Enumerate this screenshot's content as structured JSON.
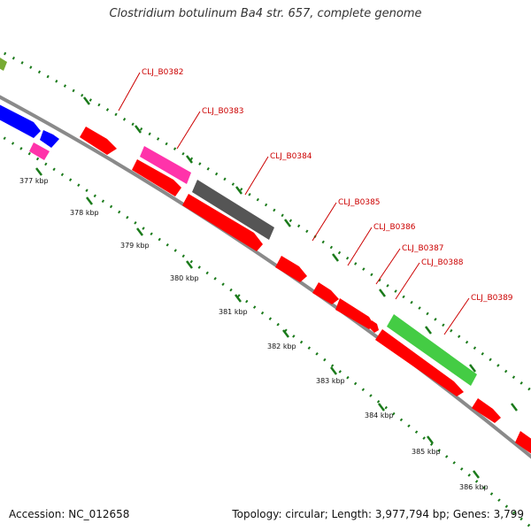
{
  "map": {
    "title": "Clostridium botulinum Ba4 str. 657, complete genome",
    "accession": "Accession: NC_012658",
    "topology": "Topology: circular; Length: 3,977,794 bp; Genes: 3,799"
  },
  "colors": {
    "backbone": "#8a8a8a",
    "tick": "#1a7a1a",
    "label": "#cc0000",
    "cds": "#ff0000",
    "trna": "#ff33aa",
    "pseudo": "#555555",
    "rrna": "#44cc44",
    "other_blue": "#0000ff",
    "other_olive": "#77aa33"
  },
  "ticks": [
    "377 kbp",
    "378 kbp",
    "379 kbp",
    "380 kbp",
    "381 kbp",
    "382 kbp",
    "383 kbp",
    "384 kbp",
    "385 kbp",
    "386 kbp"
  ],
  "gene_labels": [
    "CLJ_B0382",
    "CLJ_B0383",
    "CLJ_B0384",
    "CLJ_B0385",
    "CLJ_B0386",
    "CLJ_B0387",
    "CLJ_B0388",
    "CLJ_B0389"
  ]
}
